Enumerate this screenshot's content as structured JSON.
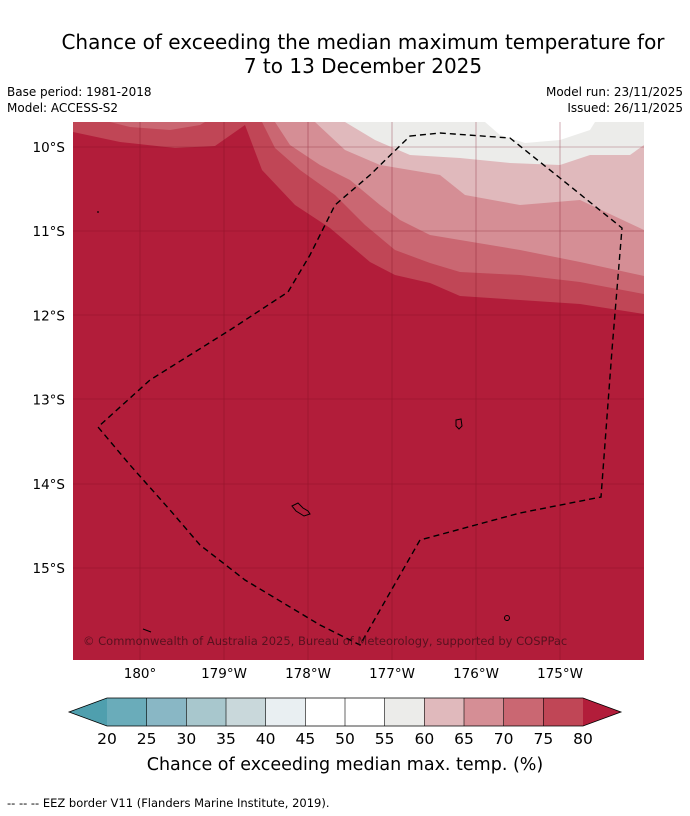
{
  "title": {
    "line1": "Chance of exceeding the median maximum temperature for",
    "line2": "7 to 13 December 2025"
  },
  "meta": {
    "base_period": "Base period: 1981-2018",
    "model": "Model: ACCESS-S2",
    "model_run": "Model run: 23/11/2025",
    "issued": "Issued: 26/11/2025"
  },
  "map": {
    "lat_ticks": [
      {
        "value": -10,
        "label": "10°S"
      },
      {
        "value": -11,
        "label": "11°S"
      },
      {
        "value": -12,
        "label": "12°S"
      },
      {
        "value": -13,
        "label": "13°S"
      },
      {
        "value": -14,
        "label": "14°S"
      },
      {
        "value": -15,
        "label": "15°S"
      }
    ],
    "lon_ticks": [
      {
        "value": -180,
        "label": "180°"
      },
      {
        "value": -179,
        "label": "179°W"
      },
      {
        "value": -178,
        "label": "178°W"
      },
      {
        "value": -177,
        "label": "177°W"
      },
      {
        "value": -176,
        "label": "176°W"
      },
      {
        "value": -175,
        "label": "175°W"
      }
    ],
    "copyright": "© Commonwealth of Australia 2025, Bureau of Meteorology, supported by COSPPac"
  },
  "colorbar": {
    "label": "Chance of exceeding median max. temp. (%)",
    "ticks": [
      "20",
      "25",
      "30",
      "35",
      "40",
      "45",
      "50",
      "55",
      "60",
      "65",
      "70",
      "75",
      "80"
    ],
    "colors": [
      "#6aacba",
      "#89b7c5",
      "#a8c7cd",
      "#c9d8db",
      "#e9eff2",
      "#ffffff",
      "#ffffff",
      "#ececea",
      "#e0b9bc",
      "#d58e95",
      "#ca6772",
      "#c04656"
    ],
    "under_color": "#4f9fae",
    "over_color": "#b21d3a"
  },
  "footer": {
    "legend_text": "-- -- -- EEZ border V11 (Flanders Marine Institute, 2019)."
  }
}
